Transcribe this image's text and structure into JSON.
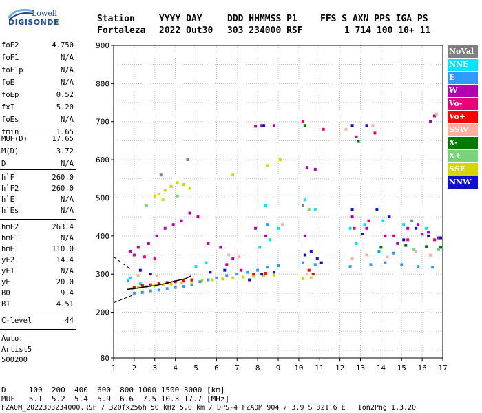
{
  "logo": {
    "top": "Lowell",
    "bottom": "DIGISONDE"
  },
  "header": {
    "labels": [
      "Station",
      "YYYY DAY",
      "DDD HHMMSS P1",
      "FFS S AXN PPS IGA PS"
    ],
    "values": [
      "Fortaleza",
      "2022 Out30",
      "303 234000 RSF",
      "1 714 100 10+ 11"
    ]
  },
  "params_group1": [
    {
      "label": "foF2",
      "value": "4.750"
    },
    {
      "label": "foF1",
      "value": "N/A"
    },
    {
      "label": "foF1p",
      "value": "N/A"
    },
    {
      "label": "foE",
      "value": "N/A"
    },
    {
      "label": "foEp",
      "value": "0.52"
    },
    {
      "label": "fxI",
      "value": "5.20"
    },
    {
      "label": "foEs",
      "value": "N/A"
    },
    {
      "label": "fmin",
      "value": "1.65"
    }
  ],
  "params_group2": [
    {
      "label": "MUF(D)",
      "value": "17.65"
    },
    {
      "label": "M(D)",
      "value": "3.72"
    },
    {
      "label": "D",
      "value": "N/A"
    }
  ],
  "params_group3": [
    {
      "label": "h`F",
      "value": "260.0"
    },
    {
      "label": "h`F2",
      "value": "260.0"
    },
    {
      "label": "h`E",
      "value": "N/A"
    },
    {
      "label": "h`Es",
      "value": "N/A"
    }
  ],
  "params_group4": [
    {
      "label": "hmF2",
      "value": "263.4"
    },
    {
      "label": "hmF1",
      "value": "N/A"
    },
    {
      "label": "hmE",
      "value": "110.0"
    },
    {
      "label": "yF2",
      "value": "14.4"
    },
    {
      "label": "yF1",
      "value": "N/A"
    },
    {
      "label": "yE",
      "value": "20.0"
    },
    {
      "label": "B0",
      "value": "9.4"
    },
    {
      "label": "B1",
      "value": "4.51"
    }
  ],
  "params_group5": [
    {
      "label": "C-level",
      "value": "44"
    }
  ],
  "autoscaling": [
    "Auto:",
    "Artist5",
    "500200"
  ],
  "legend": [
    {
      "label": "NoVal",
      "color": "#7f7f7f"
    },
    {
      "label": "NNE",
      "color": "#00e5ff"
    },
    {
      "label": "E",
      "color": "#3399ff"
    },
    {
      "label": "W",
      "color": "#b000b0"
    },
    {
      "label": "Vo-",
      "color": "#e8007a"
    },
    {
      "label": "Vo+",
      "color": "#ff0000"
    },
    {
      "label": "SSW",
      "color": "#ffb0a0"
    },
    {
      "label": "X-",
      "color": "#007a00"
    },
    {
      "label": "X+",
      "color": "#7ad27a"
    },
    {
      "label": "SSE",
      "color": "#d6d600"
    },
    {
      "label": "NNW",
      "color": "#1010c8"
    }
  ],
  "footer": {
    "line1": "D     100  200  400  600  800 1000 1500 3000 [km]",
    "line2": "MUF   5.1  5.2  5.4  5.9  6.6  7.5 10.3 17.7 [MHz]",
    "line3": "FZA0M_2022303234000.RSF / 320fx256h 50 kHz 5.0 km / DPS-4 FZA0M 904 / 3.9 S 321.6 E   Ion2Png 1.3.20"
  },
  "chart_data": {
    "type": "scatter",
    "xlim": [
      1,
      17
    ],
    "ylim": [
      80,
      900
    ],
    "x_ticks": [
      1,
      2,
      3,
      4,
      5,
      6,
      7,
      8,
      9,
      10,
      11,
      12,
      13,
      14,
      15,
      16,
      17
    ],
    "y_ticks": [
      80,
      200,
      300,
      400,
      500,
      600,
      700,
      800,
      900
    ],
    "grid": true,
    "legend_placement": "right",
    "series": [
      {
        "name": "SSE",
        "color": "#d6d600",
        "points": [
          [
            1.9,
            262
          ],
          [
            2.2,
            265
          ],
          [
            2.6,
            268
          ],
          [
            3.0,
            270
          ],
          [
            3.4,
            272
          ],
          [
            3.8,
            274
          ],
          [
            4.3,
            277
          ],
          [
            4.8,
            280
          ],
          [
            5.3,
            283
          ],
          [
            5.8,
            285
          ],
          [
            6.3,
            287
          ],
          [
            6.8,
            290
          ],
          [
            7.3,
            292
          ],
          [
            7.8,
            294
          ],
          [
            8.3,
            296
          ],
          [
            8.8,
            297
          ],
          [
            10.2,
            288
          ],
          [
            10.6,
            290
          ],
          [
            3.2,
            510
          ],
          [
            3.5,
            520
          ],
          [
            3.8,
            530
          ],
          [
            4.1,
            540
          ],
          [
            4.4,
            535
          ],
          [
            4.7,
            525
          ],
          [
            6.8,
            560
          ],
          [
            8.5,
            585
          ],
          [
            9.1,
            600
          ],
          [
            3.0,
            505
          ],
          [
            3.4,
            495
          ]
        ]
      },
      {
        "name": "E",
        "color": "#3399ff",
        "points": [
          [
            1.7,
            282
          ],
          [
            2.0,
            250
          ],
          [
            2.4,
            252
          ],
          [
            2.8,
            256
          ],
          [
            3.2,
            258
          ],
          [
            3.6,
            262
          ],
          [
            4.0,
            265
          ],
          [
            4.4,
            268
          ],
          [
            4.8,
            272
          ],
          [
            5.2,
            280
          ],
          [
            5.6,
            285
          ],
          [
            6.0,
            290
          ],
          [
            6.5,
            296
          ],
          [
            7.0,
            300
          ],
          [
            7.5,
            305
          ],
          [
            8.0,
            310
          ],
          [
            8.5,
            318
          ],
          [
            9.0,
            322
          ],
          [
            10.2,
            330
          ],
          [
            10.8,
            325
          ],
          [
            12.5,
            320
          ],
          [
            13.5,
            325
          ],
          [
            14.2,
            330
          ],
          [
            15.0,
            325
          ],
          [
            15.8,
            320
          ],
          [
            16.5,
            318
          ],
          [
            8.5,
            430
          ],
          [
            13.9,
            360
          ],
          [
            14.6,
            355
          ]
        ]
      },
      {
        "name": "NNE",
        "color": "#00e5ff",
        "points": [
          [
            1.8,
            290
          ],
          [
            2.3,
            275
          ],
          [
            5.0,
            320
          ],
          [
            5.5,
            330
          ],
          [
            8.1,
            370
          ],
          [
            8.6,
            390
          ],
          [
            8.4,
            480
          ],
          [
            10.3,
            495
          ],
          [
            10.8,
            470
          ],
          [
            12.5,
            420
          ],
          [
            13.2,
            430
          ],
          [
            14.1,
            440
          ],
          [
            15.1,
            430
          ],
          [
            16.2,
            420
          ],
          [
            9.0,
            420
          ],
          [
            12.8,
            380
          ]
        ]
      },
      {
        "name": "W",
        "color": "#b000b0",
        "points": [
          [
            1.8,
            360
          ],
          [
            2.2,
            370
          ],
          [
            2.7,
            380
          ],
          [
            3.1,
            400
          ],
          [
            3.5,
            420
          ],
          [
            3.9,
            430
          ],
          [
            4.3,
            440
          ],
          [
            4.7,
            460
          ],
          [
            5.1,
            450
          ],
          [
            5.6,
            380
          ],
          [
            6.2,
            370
          ],
          [
            6.8,
            340
          ],
          [
            7.9,
            420
          ],
          [
            8.4,
            400
          ],
          [
            10.4,
            580
          ],
          [
            10.8,
            575
          ],
          [
            10.3,
            400
          ],
          [
            12.6,
            450
          ],
          [
            13.3,
            420
          ],
          [
            14.2,
            400
          ],
          [
            14.8,
            380
          ],
          [
            15.3,
            420
          ],
          [
            15.8,
            430
          ],
          [
            16.3,
            410
          ],
          [
            16.8,
            395
          ],
          [
            16.4,
            700
          ],
          [
            16.6,
            715
          ],
          [
            7.9,
            688
          ],
          [
            8.2,
            690
          ],
          [
            8.8,
            690
          ]
        ]
      },
      {
        "name": "Vo-",
        "color": "#e8007a",
        "points": [
          [
            2.0,
            350
          ],
          [
            2.5,
            345
          ],
          [
            3.0,
            340
          ],
          [
            6.5,
            325
          ],
          [
            7.2,
            310
          ],
          [
            12.7,
            420
          ],
          [
            13.4,
            440
          ],
          [
            14.6,
            400
          ],
          [
            15.3,
            390
          ],
          [
            16.0,
            405
          ],
          [
            16.6,
            390
          ],
          [
            12.8,
            660
          ],
          [
            13.7,
            670
          ],
          [
            10.2,
            700
          ],
          [
            11.2,
            680
          ]
        ]
      },
      {
        "name": "Vo+",
        "color": "#ff0000",
        "points": [
          [
            2.0,
            265
          ],
          [
            2.4,
            270
          ],
          [
            2.8,
            272
          ],
          [
            3.2,
            275
          ],
          [
            3.6,
            278
          ],
          [
            4.0,
            280
          ],
          [
            4.4,
            282
          ],
          [
            4.8,
            285
          ],
          [
            7.8,
            300
          ],
          [
            8.4,
            302
          ],
          [
            10.5,
            310
          ],
          [
            10.7,
            300
          ]
        ]
      },
      {
        "name": "SSW",
        "color": "#ffb0a0",
        "points": [
          [
            2.2,
            296
          ],
          [
            3.1,
            295
          ],
          [
            6.6,
            350
          ],
          [
            7.1,
            345
          ],
          [
            9.2,
            430
          ],
          [
            10.4,
            300
          ],
          [
            12.6,
            340
          ],
          [
            13.3,
            350
          ],
          [
            14.3,
            345
          ],
          [
            15.7,
            360
          ],
          [
            16.4,
            350
          ],
          [
            12.3,
            680
          ],
          [
            13.6,
            690
          ],
          [
            16.7,
            720
          ]
        ]
      },
      {
        "name": "X-",
        "color": "#007a00",
        "points": [
          [
            10.3,
            690
          ],
          [
            14.0,
            370
          ],
          [
            15.2,
            375
          ],
          [
            16.2,
            372
          ],
          [
            16.9,
            370
          ],
          [
            12.9,
            648
          ]
        ]
      },
      {
        "name": "X+",
        "color": "#7ad27a",
        "points": [
          [
            2.6,
            480
          ],
          [
            4.1,
            505
          ],
          [
            10.5,
            470
          ],
          [
            15.6,
            365
          ],
          [
            16.8,
            365
          ]
        ]
      },
      {
        "name": "NNW",
        "color": "#1010c8",
        "points": [
          [
            2.3,
            310
          ],
          [
            2.8,
            300
          ],
          [
            5.7,
            305
          ],
          [
            6.4,
            310
          ],
          [
            7.6,
            285
          ],
          [
            8.2,
            300
          ],
          [
            8.8,
            305
          ],
          [
            10.3,
            350
          ],
          [
            10.6,
            360
          ],
          [
            10.9,
            340
          ],
          [
            11.1,
            330
          ],
          [
            12.6,
            470
          ],
          [
            13.1,
            405
          ],
          [
            13.8,
            470
          ],
          [
            14.4,
            450
          ],
          [
            15.1,
            390
          ],
          [
            15.7,
            420
          ],
          [
            16.3,
            400
          ],
          [
            16.9,
            395
          ],
          [
            8.3,
            690
          ],
          [
            12.6,
            690
          ],
          [
            13.3,
            690
          ]
        ]
      },
      {
        "name": "NoVal",
        "color": "#7f7f7f",
        "points": [
          [
            3.3,
            560
          ],
          [
            4.6,
            600
          ],
          [
            10.2,
            480
          ],
          [
            15.5,
            440
          ]
        ]
      }
    ],
    "profile_line": {
      "color": "#000000",
      "points": [
        [
          1.65,
          260
        ],
        [
          2.0,
          262
        ],
        [
          2.5,
          266
        ],
        [
          3.0,
          270
        ],
        [
          3.5,
          275
        ],
        [
          4.0,
          282
        ],
        [
          4.5,
          288
        ],
        [
          4.75,
          295
        ]
      ]
    },
    "extrapolation": {
      "color": "#000000",
      "dashed": true,
      "lines": [
        [
          [
            1.0,
            345
          ],
          [
            1.9,
            310
          ]
        ],
        [
          [
            1.0,
            225
          ],
          [
            1.9,
            244
          ]
        ]
      ]
    }
  }
}
